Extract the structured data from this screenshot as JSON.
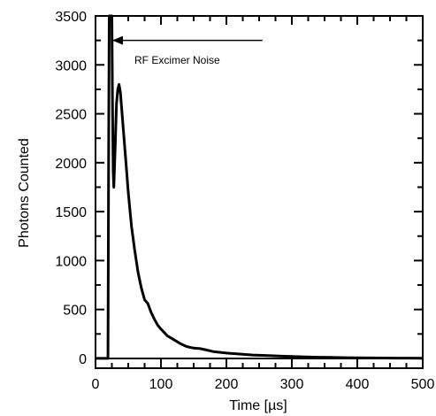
{
  "chart_data": {
    "type": "line",
    "title": "",
    "xlabel": "Time [µs]",
    "ylabel": "Photons Counted",
    "xlim": [
      0,
      500
    ],
    "ylim": [
      -100,
      3500
    ],
    "xticks": [
      0,
      100,
      200,
      300,
      400,
      500
    ],
    "yticks": [
      0,
      500,
      1000,
      1500,
      2000,
      2500,
      3000,
      3500
    ],
    "grid": false,
    "legend": "none",
    "annotation": {
      "text": "RF Excimer Noise",
      "arrow_from": [
        255,
        3250
      ],
      "arrow_to": [
        27,
        3250
      ]
    },
    "colors": {
      "line": "#000000",
      "axes": "#000000"
    },
    "series": [
      {
        "x": [
          0,
          19,
          20,
          21,
          22,
          23,
          24,
          25,
          26,
          27,
          28,
          30,
          32,
          34,
          36,
          38,
          40,
          43,
          46,
          50,
          55,
          60,
          65,
          70,
          75,
          80,
          85,
          90,
          95,
          100,
          110,
          120,
          130,
          140,
          150,
          160,
          170,
          180,
          200,
          220,
          240,
          260,
          280,
          300,
          320,
          340,
          360,
          380,
          400,
          420,
          440,
          460,
          480,
          500
        ],
        "y": [
          0,
          0,
          2000,
          3500,
          3500,
          3500,
          3500,
          3500,
          2600,
          1900,
          1750,
          2150,
          2600,
          2750,
          2800,
          2720,
          2550,
          2300,
          2050,
          1700,
          1350,
          1100,
          880,
          720,
          600,
          560,
          470,
          400,
          340,
          300,
          230,
          190,
          150,
          120,
          105,
          100,
          85,
          70,
          55,
          45,
          35,
          30,
          25,
          20,
          15,
          12,
          10,
          8,
          6,
          5,
          4,
          3,
          3,
          2
        ]
      }
    ]
  }
}
